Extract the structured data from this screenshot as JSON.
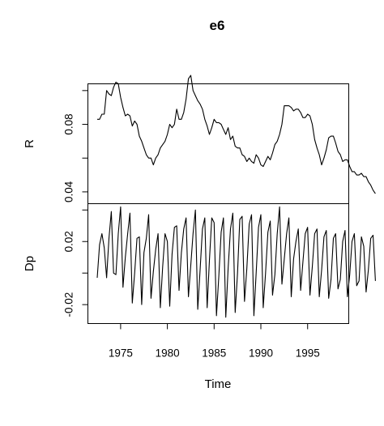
{
  "chart_data": {
    "type": "line",
    "title": "e6",
    "xlabel": "Time",
    "xlim": [
      1971.5,
      1999.4
    ],
    "x_ticks": [
      1975,
      1980,
      1985,
      1990,
      1995
    ],
    "x_tick_labels": [
      "1975",
      "1980",
      "1985",
      "1990",
      "1995"
    ],
    "x_start": 1972.5,
    "x_step": 0.25,
    "panels": [
      {
        "name": "R",
        "ylabel": "R",
        "ylim": [
          0.033,
          0.104
        ],
        "y_ticks": [
          0.04,
          0.06,
          0.08,
          0.1
        ],
        "y_tick_labels": [
          "0.04",
          "",
          "0.08",
          ""
        ],
        "values": [
          0.083,
          0.083,
          0.086,
          0.086,
          0.1,
          0.098,
          0.097,
          0.102,
          0.105,
          0.104,
          0.096,
          0.09,
          0.085,
          0.086,
          0.085,
          0.079,
          0.082,
          0.08,
          0.073,
          0.07,
          0.066,
          0.062,
          0.06,
          0.06,
          0.056,
          0.06,
          0.062,
          0.066,
          0.068,
          0.07,
          0.074,
          0.08,
          0.078,
          0.08,
          0.089,
          0.083,
          0.083,
          0.087,
          0.095,
          0.107,
          0.109,
          0.1,
          0.097,
          0.094,
          0.092,
          0.089,
          0.083,
          0.079,
          0.074,
          0.078,
          0.083,
          0.081,
          0.081,
          0.08,
          0.077,
          0.074,
          0.078,
          0.071,
          0.073,
          0.067,
          0.066,
          0.066,
          0.062,
          0.061,
          0.058,
          0.06,
          0.058,
          0.057,
          0.062,
          0.06,
          0.056,
          0.055,
          0.058,
          0.061,
          0.059,
          0.063,
          0.068,
          0.07,
          0.074,
          0.08,
          0.091,
          0.091,
          0.091,
          0.09,
          0.088,
          0.089,
          0.089,
          0.087,
          0.084,
          0.084,
          0.086,
          0.085,
          0.08,
          0.071,
          0.066,
          0.062,
          0.056,
          0.06,
          0.065,
          0.072,
          0.073,
          0.073,
          0.069,
          0.064,
          0.062,
          0.058,
          0.059,
          0.059,
          0.055,
          0.052,
          0.052,
          0.05,
          0.05,
          0.051,
          0.049,
          0.049,
          0.046,
          0.044,
          0.041,
          0.039
        ]
      },
      {
        "name": "Dp",
        "ylabel": "Dp",
        "ylim": [
          -0.032,
          0.044
        ],
        "y_ticks": [
          -0.02,
          0.0,
          0.02,
          0.04
        ],
        "y_tick_labels": [
          "-0.02",
          "",
          "0.02",
          ""
        ],
        "values": [
          -0.003,
          0.018,
          0.025,
          0.016,
          -0.003,
          0.022,
          0.039,
          0.0,
          -0.001,
          0.025,
          0.042,
          -0.009,
          0.01,
          0.025,
          0.038,
          -0.019,
          0.0,
          0.022,
          0.023,
          -0.02,
          0.013,
          0.022,
          0.037,
          -0.016,
          0.001,
          0.015,
          0.025,
          -0.022,
          0.004,
          0.025,
          0.02,
          -0.021,
          0.012,
          0.029,
          0.03,
          -0.011,
          0.013,
          0.028,
          0.035,
          -0.015,
          0.005,
          0.025,
          0.04,
          -0.023,
          0.002,
          0.028,
          0.035,
          -0.022,
          0.008,
          0.035,
          0.032,
          -0.027,
          -0.002,
          0.026,
          0.035,
          -0.028,
          0.003,
          0.028,
          0.038,
          -0.025,
          0.0,
          0.034,
          0.036,
          -0.018,
          0.003,
          0.031,
          0.037,
          -0.027,
          0.0,
          0.029,
          0.037,
          -0.022,
          0.0,
          0.026,
          0.033,
          -0.014,
          -0.001,
          0.025,
          0.042,
          -0.007,
          0.009,
          0.025,
          0.035,
          -0.015,
          0.009,
          0.02,
          0.028,
          -0.011,
          0.007,
          0.025,
          0.029,
          -0.014,
          0.004,
          0.025,
          0.028,
          -0.015,
          0.002,
          0.023,
          0.027,
          -0.016,
          -0.004,
          0.022,
          0.025,
          -0.01,
          -0.004,
          0.02,
          0.027,
          -0.015,
          -0.001,
          0.02,
          0.025,
          -0.008,
          -0.005,
          0.023,
          0.017,
          -0.012,
          0.002,
          0.022,
          0.024,
          -0.005
        ]
      }
    ],
    "grid": false,
    "legend": "none"
  }
}
